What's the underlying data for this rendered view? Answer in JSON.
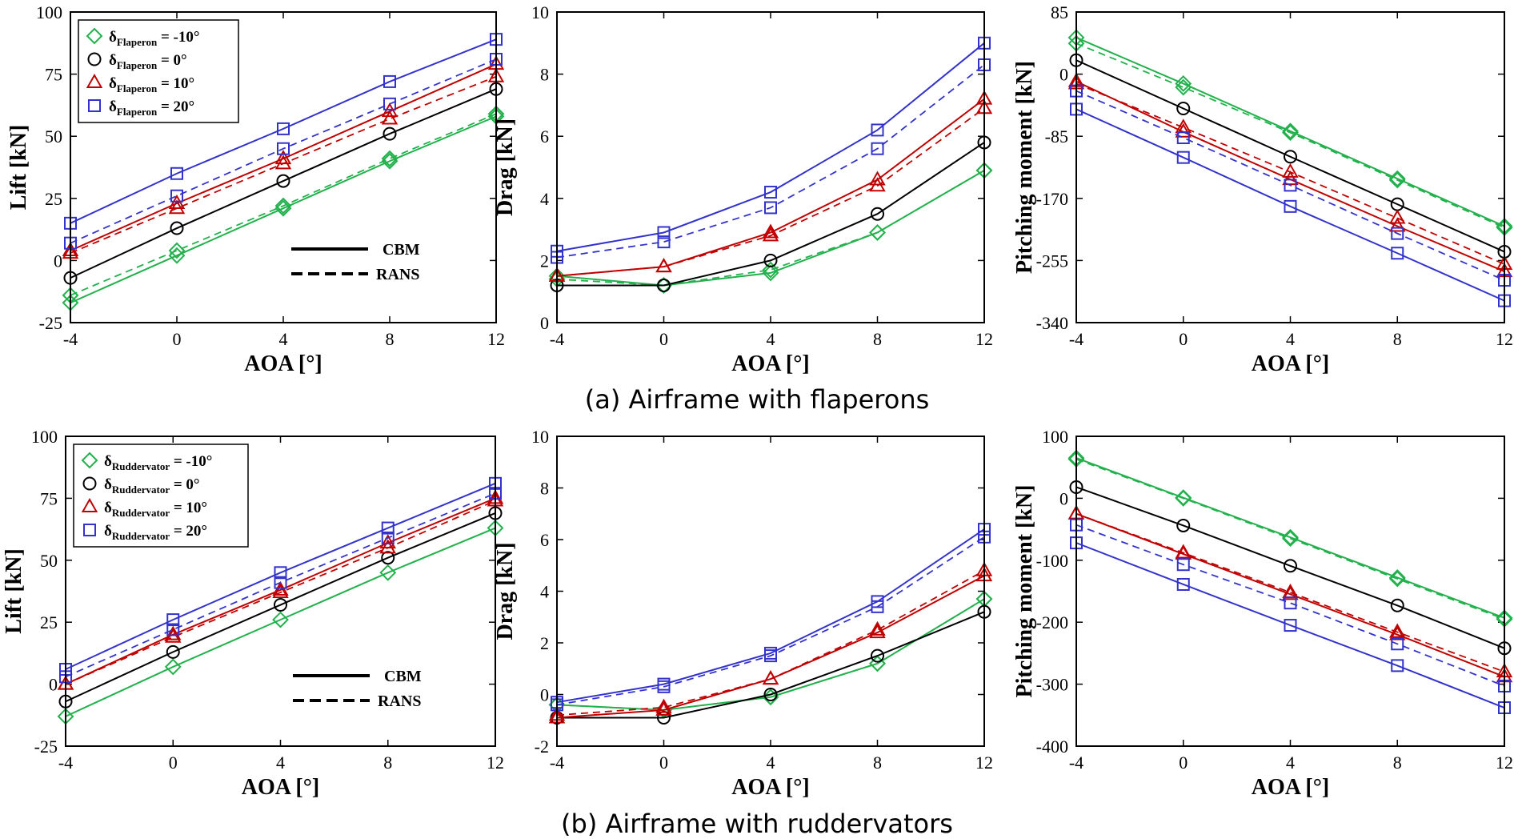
{
  "captions": {
    "a": "(a) Airframe with flaperons",
    "b": "(b) Airframe with ruddervators"
  },
  "line_styles": {
    "solid": "CBM",
    "dashed": "RANS"
  },
  "colors": {
    "m10": "#22b14c",
    "m0": "#000000",
    "p10": "#c00000",
    "p20": "#3333cc"
  },
  "chart_data": [
    {
      "type": "line",
      "id": "a_lift",
      "xlabel": "AOA [°]",
      "ylabel": "Lift [kN]",
      "x": [
        -4,
        0,
        4,
        8,
        12
      ],
      "xlim": [
        -4,
        12
      ],
      "xticks": [
        -4,
        0,
        4,
        8,
        12
      ],
      "ylim": [
        -25,
        100
      ],
      "yticks": [
        -25,
        0,
        25,
        50,
        75,
        100
      ],
      "legend": {
        "position": "top-left",
        "symbol": "δ",
        "sub": "Flaperon",
        "entries": [
          " = -10°",
          " = 0°",
          " = 10°",
          " = 20°"
        ]
      },
      "series": [
        {
          "key": "m10",
          "marker": "diamond",
          "name": "δFlaperon = -10°",
          "cbm": [
            -17,
            2,
            21,
            40,
            58
          ],
          "rans": [
            -14,
            4,
            22,
            41,
            59
          ]
        },
        {
          "key": "m0",
          "marker": "circle",
          "name": "δFlaperon = 0°",
          "cbm": [
            -7,
            13,
            32,
            51,
            69
          ],
          "rans": []
        },
        {
          "key": "p10",
          "marker": "triangle",
          "name": "δFlaperon = 10°",
          "cbm": [
            4,
            23,
            41,
            60,
            79
          ],
          "rans": [
            3,
            21,
            39,
            57,
            74
          ]
        },
        {
          "key": "p20",
          "marker": "square",
          "name": "δFlaperon = 20°",
          "cbm": [
            15,
            35,
            53,
            72,
            89
          ],
          "rans": [
            7,
            26,
            45,
            63,
            81
          ]
        }
      ]
    },
    {
      "type": "line",
      "id": "a_drag",
      "xlabel": "AOA [°]",
      "ylabel": "Drag [kN]",
      "x": [
        -4,
        0,
        4,
        8,
        12
      ],
      "xlim": [
        -4,
        12
      ],
      "xticks": [
        -4,
        0,
        4,
        8,
        12
      ],
      "ylim": [
        0,
        10
      ],
      "yticks": [
        0,
        2,
        4,
        6,
        8,
        10
      ],
      "series": [
        {
          "key": "m10",
          "marker": "diamond",
          "cbm": [
            1.5,
            1.2,
            1.6,
            2.9,
            4.9
          ],
          "rans": [
            1.4,
            1.2,
            1.7,
            2.9,
            4.9
          ]
        },
        {
          "key": "m0",
          "marker": "circle",
          "cbm": [
            1.2,
            1.2,
            2.0,
            3.5,
            5.8
          ],
          "rans": []
        },
        {
          "key": "p10",
          "marker": "triangle",
          "cbm": [
            1.5,
            1.8,
            2.9,
            4.6,
            7.2
          ],
          "rans": [
            1.5,
            1.8,
            2.8,
            4.4,
            6.9
          ]
        },
        {
          "key": "p20",
          "marker": "square",
          "cbm": [
            2.3,
            2.9,
            4.2,
            6.2,
            9.0
          ],
          "rans": [
            2.1,
            2.6,
            3.7,
            5.6,
            8.3
          ]
        }
      ]
    },
    {
      "type": "line",
      "id": "a_pitch",
      "xlabel": "AOA [°]",
      "ylabel": "Pitching moment [kN]",
      "x": [
        -4,
        0,
        4,
        8,
        12
      ],
      "xlim": [
        -4,
        12
      ],
      "xticks": [
        -4,
        0,
        4,
        8,
        12
      ],
      "ylim": [
        -340,
        85
      ],
      "yticks": [
        -340,
        -255,
        -170,
        -85,
        0,
        85
      ],
      "series": [
        {
          "key": "m10",
          "marker": "diamond",
          "cbm": [
            50,
            -13,
            -78,
            -143,
            -208
          ],
          "rans": [
            42,
            -18,
            -80,
            -145,
            -210
          ]
        },
        {
          "key": "m0",
          "marker": "circle",
          "cbm": [
            19,
            -47,
            -113,
            -178,
            -243
          ],
          "rans": []
        },
        {
          "key": "p10",
          "marker": "triangle",
          "cbm": [
            -10,
            -79,
            -144,
            -208,
            -270
          ],
          "rans": [
            -13,
            -73,
            -134,
            -197,
            -260
          ]
        },
        {
          "key": "p20",
          "marker": "square",
          "cbm": [
            -48,
            -114,
            -181,
            -245,
            -310
          ],
          "rans": [
            -23,
            -87,
            -152,
            -218,
            -282
          ]
        }
      ]
    },
    {
      "type": "line",
      "id": "b_lift",
      "xlabel": "AOA [°]",
      "ylabel": "Lift [kN]",
      "x": [
        -4,
        0,
        4,
        8,
        12
      ],
      "xlim": [
        -4,
        12
      ],
      "xticks": [
        -4,
        0,
        4,
        8,
        12
      ],
      "ylim": [
        -25,
        100
      ],
      "yticks": [
        -25,
        0,
        25,
        50,
        75,
        100
      ],
      "legend": {
        "position": "top-left",
        "symbol": "δ",
        "sub": "Ruddervator",
        "entries": [
          " = -10°",
          " = 0°",
          " = 10°",
          " = 20°"
        ]
      },
      "series": [
        {
          "key": "m10",
          "marker": "diamond",
          "name": "δRuddervator = -10°",
          "cbm": [
            -13,
            7,
            26,
            45,
            63
          ],
          "rans": []
        },
        {
          "key": "m0",
          "marker": "circle",
          "name": "δRuddervator = 0°",
          "cbm": [
            -7,
            13,
            32,
            51,
            69
          ],
          "rans": []
        },
        {
          "key": "p10",
          "marker": "triangle",
          "name": "δRuddervator = 10°",
          "cbm": [
            0,
            20,
            38,
            57,
            75
          ],
          "rans": [
            0,
            19,
            37,
            55,
            74
          ]
        },
        {
          "key": "p20",
          "marker": "square",
          "name": "δRuddervator = 20°",
          "cbm": [
            6,
            26,
            45,
            63,
            81
          ],
          "rans": [
            3,
            22,
            41,
            59,
            77
          ]
        }
      ]
    },
    {
      "type": "line",
      "id": "b_drag",
      "xlabel": "AOA [°]",
      "ylabel": "Drag [kN]",
      "x": [
        -4,
        0,
        4,
        8,
        12
      ],
      "xlim": [
        -4,
        12
      ],
      "xticks": [
        -4,
        0,
        4,
        8,
        12
      ],
      "ylim": [
        -2,
        10
      ],
      "yticks": [
        -2,
        0,
        2,
        4,
        6,
        8,
        10
      ],
      "series": [
        {
          "key": "m10",
          "marker": "diamond",
          "cbm": [
            -0.4,
            -0.6,
            -0.1,
            1.2,
            3.7
          ],
          "rans": [
            -0.4,
            -0.6,
            -0.1,
            1.2,
            3.7
          ]
        },
        {
          "key": "m0",
          "marker": "circle",
          "cbm": [
            -0.9,
            -0.9,
            0.0,
            1.5,
            3.2
          ],
          "rans": []
        },
        {
          "key": "p10",
          "marker": "triangle",
          "cbm": [
            -0.9,
            -0.6,
            0.6,
            2.4,
            4.6
          ],
          "rans": [
            -0.8,
            -0.5,
            0.6,
            2.5,
            4.8
          ]
        },
        {
          "key": "p20",
          "marker": "square",
          "cbm": [
            -0.3,
            0.4,
            1.6,
            3.6,
            6.4
          ],
          "rans": [
            -0.4,
            0.3,
            1.5,
            3.4,
            6.1
          ]
        }
      ]
    },
    {
      "type": "line",
      "id": "b_pitch",
      "xlabel": "AOA [°]",
      "ylabel": "Pitching moment [kN]",
      "x": [
        -4,
        0,
        4,
        8,
        12
      ],
      "xlim": [
        -4,
        12
      ],
      "xticks": [
        -4,
        0,
        4,
        8,
        12
      ],
      "ylim": [
        -400,
        100
      ],
      "yticks": [
        -400,
        -300,
        -200,
        -100,
        0,
        100
      ],
      "series": [
        {
          "key": "m10",
          "marker": "diamond",
          "cbm": [
            65,
            1,
            -63,
            -128,
            -193
          ],
          "rans": [
            63,
            0,
            -65,
            -130,
            -195
          ]
        },
        {
          "key": "m0",
          "marker": "circle",
          "cbm": [
            18,
            -44,
            -109,
            -173,
            -242
          ],
          "rans": []
        },
        {
          "key": "p10",
          "marker": "triangle",
          "cbm": [
            -25,
            -90,
            -155,
            -220,
            -288
          ],
          "rans": [
            -25,
            -88,
            -152,
            -216,
            -280
          ]
        },
        {
          "key": "p20",
          "marker": "square",
          "cbm": [
            -72,
            -139,
            -205,
            -270,
            -338
          ],
          "rans": [
            -43,
            -107,
            -169,
            -235,
            -303
          ]
        }
      ]
    }
  ]
}
